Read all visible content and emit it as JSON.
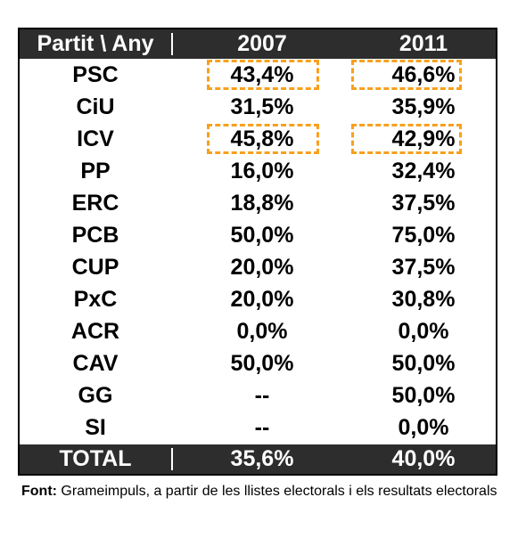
{
  "table": {
    "headers": [
      "Partit \\ Any",
      "2007",
      "2011"
    ],
    "rows": [
      {
        "party": "PSC",
        "y2007": "43,4%",
        "y2011": "46,6%",
        "highlight": true
      },
      {
        "party": "CiU",
        "y2007": "31,5%",
        "y2011": "35,9%",
        "highlight": false
      },
      {
        "party": "ICV",
        "y2007": "45,8%",
        "y2011": "42,9%",
        "highlight": true
      },
      {
        "party": "PP",
        "y2007": "16,0%",
        "y2011": "32,4%",
        "highlight": false
      },
      {
        "party": "ERC",
        "y2007": "18,8%",
        "y2011": "37,5%",
        "highlight": false
      },
      {
        "party": "PCB",
        "y2007": "50,0%",
        "y2011": "75,0%",
        "highlight": false
      },
      {
        "party": "CUP",
        "y2007": "20,0%",
        "y2011": "37,5%",
        "highlight": false
      },
      {
        "party": "PxC",
        "y2007": "20,0%",
        "y2011": "30,8%",
        "highlight": false
      },
      {
        "party": "ACR",
        "y2007": "0,0%",
        "y2011": "0,0%",
        "highlight": false
      },
      {
        "party": "CAV",
        "y2007": "50,0%",
        "y2011": "50,0%",
        "highlight": false
      },
      {
        "party": "GG",
        "y2007": "--",
        "y2011": "50,0%",
        "highlight": false
      },
      {
        "party": "SI",
        "y2007": "--",
        "y2011": "0,0%",
        "highlight": false
      }
    ],
    "total": {
      "party": "TOTAL",
      "y2007": "35,6%",
      "y2011": "40,0%"
    }
  },
  "footnote": {
    "label": "Font:",
    "text": " Grameimpuls, a partir de les llistes electorals i els resultats electorals"
  },
  "colors": {
    "header_bg": "#2d2d2d",
    "highlight": "#f7a01c"
  }
}
